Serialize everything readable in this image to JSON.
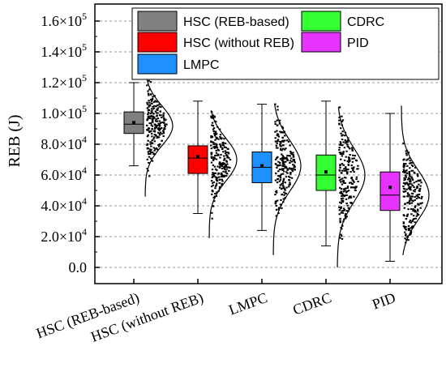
{
  "chart_data": {
    "type": "box",
    "ylabel": "REB (J)",
    "ylim": [
      -10000,
      170000
    ],
    "yticks": [
      {
        "value": 0,
        "label": "0.0"
      },
      {
        "value": 20000,
        "label": "2.0×10",
        "exp": "4"
      },
      {
        "value": 40000,
        "label": "4.0×10",
        "exp": "4"
      },
      {
        "value": 60000,
        "label": "6.0×10",
        "exp": "4"
      },
      {
        "value": 80000,
        "label": "8.0×10",
        "exp": "4"
      },
      {
        "value": 100000,
        "label": "1.0×10",
        "exp": "5"
      },
      {
        "value": 120000,
        "label": "1.2×10",
        "exp": "5"
      },
      {
        "value": 140000,
        "label": "1.4×10",
        "exp": "5"
      },
      {
        "value": 160000,
        "label": "1.6×10",
        "exp": "5"
      }
    ],
    "grid": "horizontal dashed",
    "legend_position": "top-right",
    "categories": [
      "HSC (REB-based)",
      "HSC (without REB)",
      "LMPC",
      "CDRC",
      "PID"
    ],
    "series": [
      {
        "name": "HSC (REB-based)",
        "color": "#808080",
        "whisker_low": 66000,
        "q1": 87000,
        "median": 93000,
        "mean": 94000,
        "q3": 101000,
        "whisker_high": 120000,
        "dist_min": 46000,
        "dist_max": 124000,
        "dist_center": 92000
      },
      {
        "name": "HSC (without REB)",
        "color": "#ff0000",
        "whisker_low": 35000,
        "q1": 61000,
        "median": 71000,
        "mean": 72000,
        "q3": 79000,
        "whisker_high": 108000,
        "dist_min": 19000,
        "dist_max": 102000,
        "dist_center": 70000
      },
      {
        "name": "LMPC",
        "color": "#1e90ff",
        "whisker_low": 24000,
        "q1": 55000,
        "median": 65000,
        "mean": 66000,
        "q3": 75000,
        "whisker_high": 106000,
        "dist_min": 8000,
        "dist_max": 106000,
        "dist_center": 66000
      },
      {
        "name": "CDRC",
        "color": "#33ff33",
        "whisker_low": 14000,
        "q1": 50000,
        "median": 60000,
        "mean": 62000,
        "q3": 73000,
        "whisker_high": 108000,
        "dist_min": 0,
        "dist_max": 104000,
        "dist_center": 60000
      },
      {
        "name": "PID",
        "color": "#e633ff",
        "whisker_low": 4000,
        "q1": 37000,
        "median": 47000,
        "mean": 52000,
        "q3": 62000,
        "whisker_high": 100000,
        "dist_min": 8000,
        "dist_max": 105000,
        "dist_center": 47000
      }
    ]
  }
}
